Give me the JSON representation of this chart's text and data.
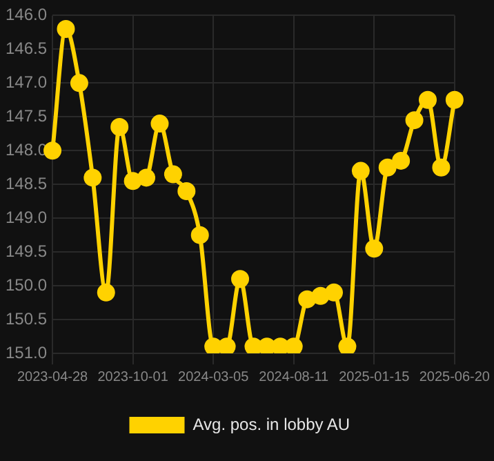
{
  "chart_data": {
    "type": "line",
    "categories": [
      "2023-04-28",
      null,
      null,
      null,
      null,
      null,
      "2023-10-01",
      null,
      null,
      null,
      null,
      null,
      "2024-03-05",
      null,
      null,
      null,
      null,
      null,
      "2024-08-11",
      null,
      null,
      null,
      null,
      null,
      "2025-01-15",
      null,
      null,
      null,
      null,
      null,
      "2025-06-20"
    ],
    "series": [
      {
        "name": "Avg. pos. in lobby AU",
        "color": "#ffd200",
        "values": [
          148.0,
          146.2,
          147.0,
          148.4,
          150.1,
          147.65,
          148.45,
          148.4,
          147.6,
          148.35,
          148.6,
          149.25,
          150.9,
          150.9,
          149.9,
          150.9,
          150.9,
          150.9,
          150.9,
          150.2,
          150.15,
          150.1,
          150.9,
          148.3,
          149.45,
          148.25,
          148.15,
          147.55,
          147.25,
          148.25,
          147.25
        ]
      }
    ],
    "ylim": [
      151.0,
      146.0
    ],
    "yticks": [
      {
        "value": 146.0,
        "label": "146.0"
      },
      {
        "value": 146.5,
        "label": "146.5"
      },
      {
        "value": 147.0,
        "label": "147.0"
      },
      {
        "value": 147.5,
        "label": "147.5"
      },
      {
        "value": 148.0,
        "label": "148.0"
      },
      {
        "value": 148.5,
        "label": "148.5"
      },
      {
        "value": 149.0,
        "label": "149.0"
      },
      {
        "value": 149.5,
        "label": "149.5"
      },
      {
        "value": 150.0,
        "label": "150.0"
      },
      {
        "value": 150.5,
        "label": "150.5"
      },
      {
        "value": 151.0,
        "label": "151.0"
      }
    ],
    "grid": true,
    "legend": "bottom",
    "marker": "circle",
    "line_style": "solid"
  }
}
